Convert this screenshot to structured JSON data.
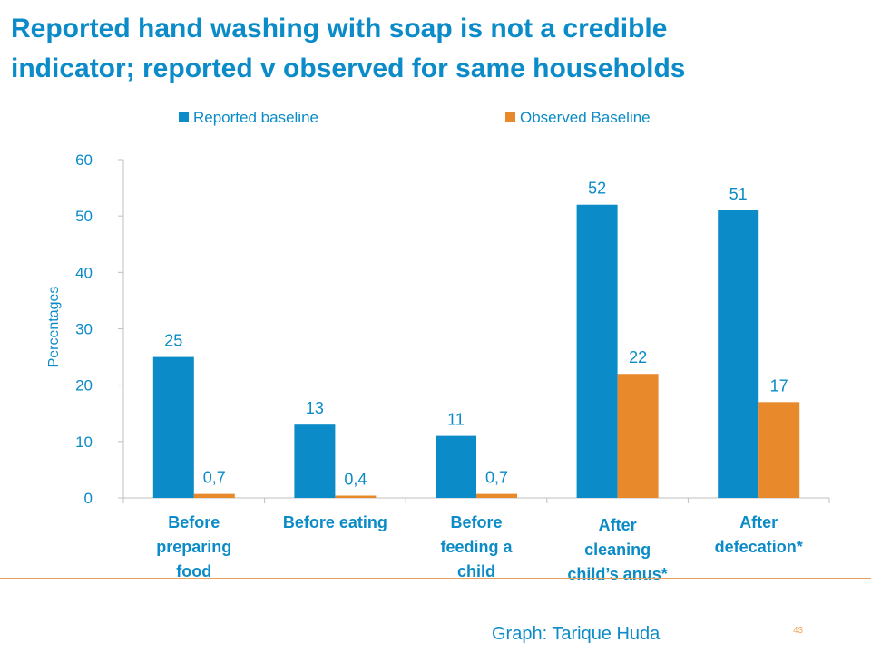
{
  "slide": {
    "title_lines": [
      "Reported hand washing with soap is not a credible",
      "indicator; reported v observed for same households"
    ],
    "credit": "Graph: Tarique Huda",
    "slide_number": "43"
  },
  "colors": {
    "title": "#0B8BC7",
    "reported": "#0B8BC7",
    "observed": "#E8892B",
    "axis": "#BFBFBF",
    "divider": "#E8A060"
  },
  "chart_data": {
    "type": "bar",
    "title": "",
    "xlabel": "",
    "ylabel": "Percentages",
    "ylim": [
      0,
      60
    ],
    "yticks": [
      0,
      10,
      20,
      30,
      40,
      50,
      60
    ],
    "grid": false,
    "legend_position": "top",
    "categories": [
      [
        "Before",
        "preparing",
        "food"
      ],
      [
        "Before eating"
      ],
      [
        "Before",
        "feeding a",
        "child"
      ],
      [
        "After",
        "cleaning",
        "child’s anus*"
      ],
      [
        "After",
        "defecation*"
      ]
    ],
    "series": [
      {
        "name": "Reported baseline",
        "color": "#0B8BC7",
        "values": [
          25,
          13,
          11,
          52,
          51
        ],
        "labels": [
          "25",
          "13",
          "11",
          "52",
          "51"
        ]
      },
      {
        "name": "Observed Baseline",
        "color": "#E8892B",
        "values": [
          0.7,
          0.4,
          0.7,
          22,
          17
        ],
        "labels": [
          "0,7",
          "0,4",
          "0,7",
          "22",
          "17"
        ]
      }
    ]
  }
}
